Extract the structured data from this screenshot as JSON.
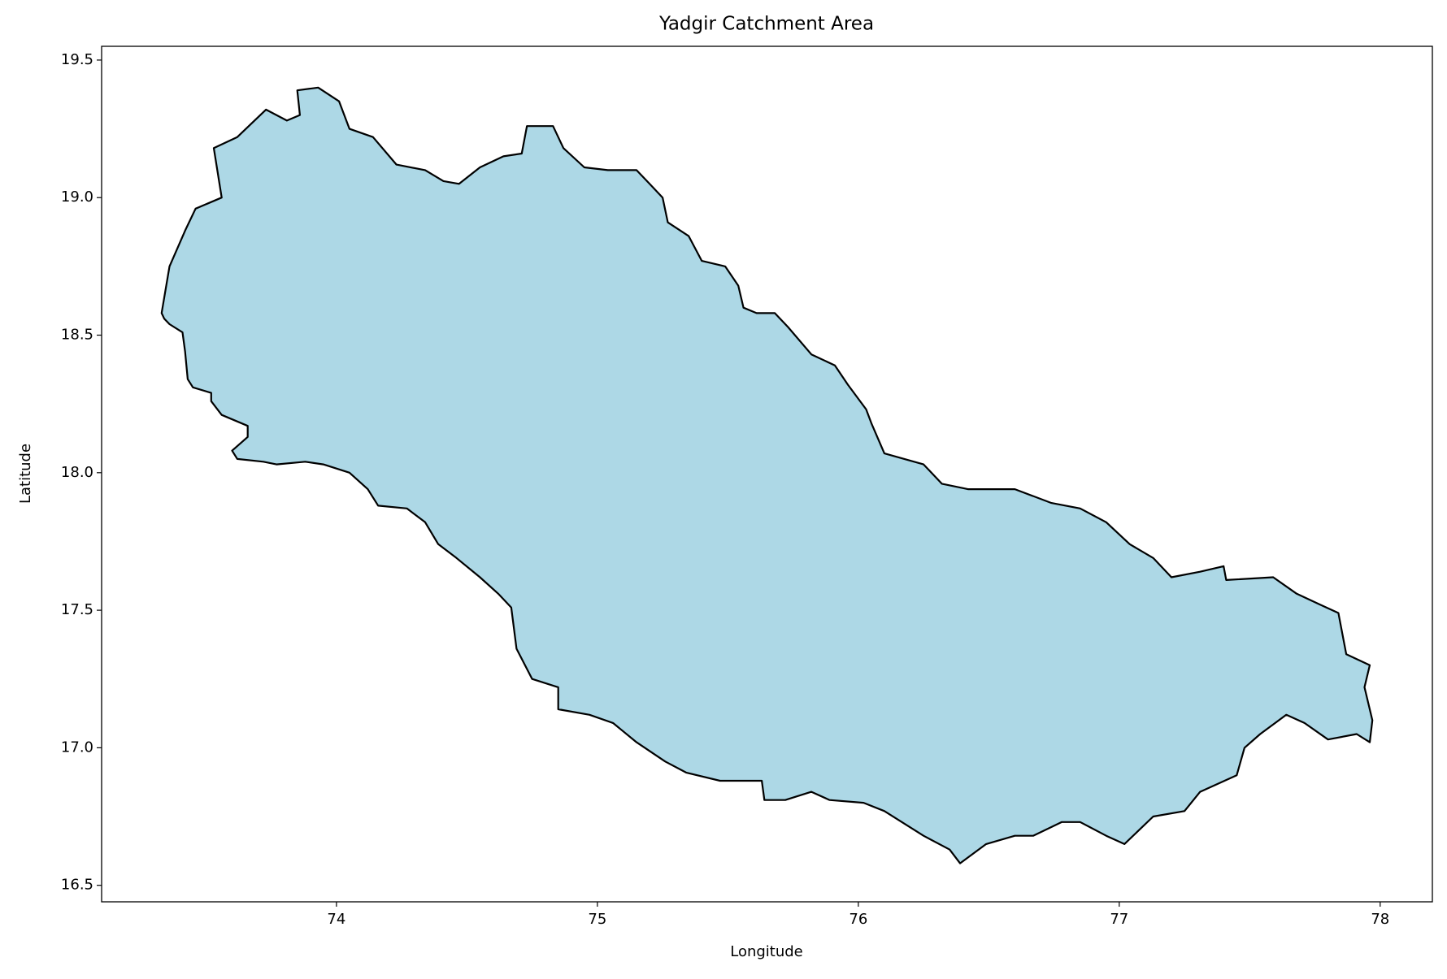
{
  "chart_data": {
    "type": "polygon",
    "title": "Yadgir Catchment Area",
    "x_label": "Longitude",
    "y_label": "Latitude",
    "fill_color": "#add8e6",
    "edge_color": "#000000",
    "x": [
      73.33,
      73.36,
      73.42,
      73.46,
      73.56,
      73.53,
      73.62,
      73.73,
      73.81,
      73.86,
      73.85,
      73.93,
      74.01,
      74.05,
      74.14,
      74.23,
      74.34,
      74.41,
      74.47,
      74.55,
      74.64,
      74.71,
      74.73,
      74.83,
      74.87,
      74.95,
      75.04,
      75.15,
      75.2,
      75.25,
      75.27,
      75.35,
      75.4,
      75.49,
      75.54,
      75.56,
      75.61,
      75.68,
      75.73,
      75.82,
      75.91,
      75.96,
      76.03,
      76.05,
      76.1,
      76.25,
      76.32,
      76.42,
      76.6,
      76.74,
      76.85,
      76.95,
      77.04,
      77.13,
      77.2,
      77.31,
      77.4,
      77.41,
      77.59,
      77.68,
      77.77,
      77.84,
      77.87,
      77.96,
      77.94,
      77.97,
      77.96,
      77.91,
      77.8,
      77.71,
      77.64,
      77.54,
      77.48,
      77.45,
      77.31,
      77.25,
      77.13,
      77.02,
      76.95,
      76.85,
      76.78,
      76.67,
      76.6,
      76.49,
      76.39,
      76.35,
      76.25,
      76.1,
      76.02,
      75.89,
      75.82,
      75.72,
      75.64,
      75.63,
      75.47,
      75.34,
      75.26,
      75.15,
      75.06,
      74.97,
      74.85,
      74.85,
      74.75,
      74.69,
      74.67,
      74.62,
      74.55,
      74.46,
      74.39,
      74.34,
      74.27,
      74.16,
      74.12,
      74.05,
      73.95,
      73.88,
      73.77,
      73.72,
      73.62,
      73.6,
      73.66,
      73.66,
      73.56,
      73.52,
      73.52,
      73.45,
      73.43,
      73.42,
      73.41,
      73.36,
      73.34
    ],
    "y": [
      18.58,
      18.75,
      18.88,
      18.96,
      19.0,
      19.18,
      19.22,
      19.32,
      19.28,
      19.3,
      19.39,
      19.4,
      19.35,
      19.25,
      19.22,
      19.12,
      19.1,
      19.06,
      19.05,
      19.11,
      19.15,
      19.16,
      19.26,
      19.26,
      19.18,
      19.11,
      19.1,
      19.1,
      19.05,
      19.0,
      18.91,
      18.86,
      18.77,
      18.75,
      18.68,
      18.6,
      18.58,
      18.58,
      18.53,
      18.43,
      18.39,
      18.32,
      18.23,
      18.18,
      18.07,
      18.03,
      17.96,
      17.94,
      17.94,
      17.89,
      17.87,
      17.82,
      17.74,
      17.69,
      17.62,
      17.64,
      17.66,
      17.61,
      17.62,
      17.56,
      17.52,
      17.49,
      17.34,
      17.3,
      17.22,
      17.1,
      17.02,
      17.05,
      17.03,
      17.09,
      17.12,
      17.05,
      17.0,
      16.9,
      16.84,
      16.77,
      16.75,
      16.65,
      16.68,
      16.73,
      16.73,
      16.68,
      16.68,
      16.65,
      16.58,
      16.63,
      16.68,
      16.77,
      16.8,
      16.81,
      16.84,
      16.81,
      16.81,
      16.88,
      16.88,
      16.91,
      16.95,
      17.02,
      17.09,
      17.12,
      17.14,
      17.22,
      17.25,
      17.36,
      17.51,
      17.56,
      17.62,
      17.69,
      17.74,
      17.82,
      17.87,
      17.88,
      17.94,
      18.0,
      18.03,
      18.04,
      18.03,
      18.04,
      18.05,
      18.08,
      18.13,
      18.17,
      18.21,
      18.26,
      18.29,
      18.31,
      18.34,
      18.44,
      18.51,
      18.54,
      18.56
    ],
    "xlim": [
      73.1,
      78.2
    ],
    "ylim": [
      16.44,
      19.55
    ],
    "xticks": [
      74,
      75,
      76,
      77,
      78
    ],
    "yticks": [
      16.5,
      {
        "value": 17,
        "label": "17.0"
      },
      17.5,
      {
        "value": 18,
        "label": "18.0"
      },
      18.5,
      {
        "value": 19,
        "label": "19.0"
      },
      19.5
    ],
    "grid": false
  }
}
